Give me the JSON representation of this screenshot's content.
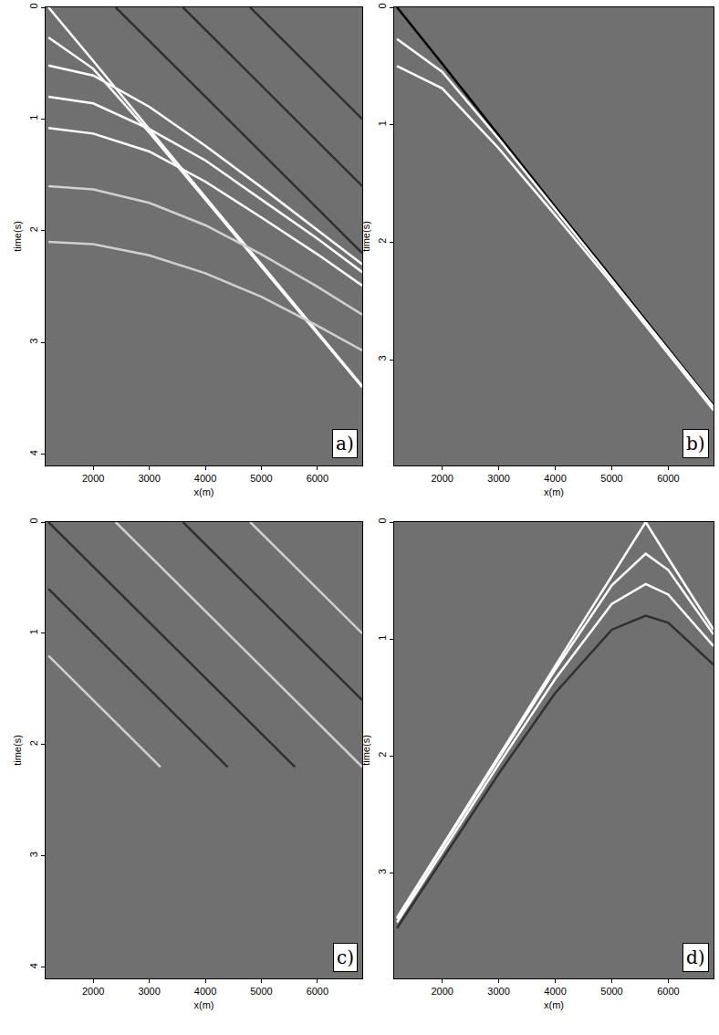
{
  "chart_data": [
    {
      "type": "line",
      "annotations": [
        "a)"
      ],
      "x_label": "x(m)",
      "y_label": "time(s)",
      "xlim": [
        1150,
        6800
      ],
      "xticks": [
        2000,
        3000,
        4000,
        5000,
        6000
      ],
      "ylim": [
        0,
        4.1
      ],
      "yticks": [
        0,
        1,
        2,
        3,
        4
      ],
      "tick_labels": true,
      "series": [
        {
          "color": "#ffffff",
          "x": [
            1200,
            2000,
            3000,
            4000,
            5000,
            6000,
            6800
          ],
          "values": [
            0,
            0.48,
            1.09,
            1.7,
            2.3,
            2.91,
            3.39
          ]
        },
        {
          "color": "#ffffff",
          "x": [
            1200,
            2000,
            3000,
            4000,
            5000,
            6000,
            6800
          ],
          "values": [
            0.27,
            0.55,
            1.12,
            1.72,
            2.32,
            2.92,
            3.4
          ]
        },
        {
          "color": "#ffffff",
          "x": [
            1200,
            2000,
            3000,
            4000,
            5000,
            6000,
            6800
          ],
          "values": [
            0.52,
            0.61,
            0.89,
            1.24,
            1.61,
            1.99,
            2.3
          ]
        },
        {
          "color": "#ffffff",
          "x": [
            1200,
            2000,
            3000,
            4000,
            5000,
            6000,
            6800
          ],
          "values": [
            0.8,
            0.86,
            1.09,
            1.37,
            1.72,
            2.07,
            2.37
          ]
        },
        {
          "color": "#ffffff",
          "x": [
            1200,
            2000,
            3000,
            4000,
            5000,
            6000,
            6800
          ],
          "values": [
            1.08,
            1.13,
            1.29,
            1.56,
            1.88,
            2.21,
            2.49
          ]
        },
        {
          "color": "#d0d0d0",
          "x": [
            1200,
            2000,
            3000,
            4000,
            5000,
            6000,
            6800
          ],
          "values": [
            1.6,
            1.63,
            1.75,
            1.95,
            2.21,
            2.5,
            2.75
          ]
        },
        {
          "color": "#d0d0d0",
          "x": [
            1200,
            2000,
            3000,
            4000,
            5000,
            6000,
            6800
          ],
          "values": [
            2.1,
            2.12,
            2.22,
            2.38,
            2.59,
            2.85,
            3.07
          ]
        },
        {
          "color": "#303030",
          "x": [
            2400,
            6800
          ],
          "values": [
            0,
            2.2
          ]
        },
        {
          "color": "#303030",
          "x": [
            3600,
            6800
          ],
          "values": [
            0,
            1.6
          ]
        },
        {
          "color": "#303030",
          "x": [
            4800,
            6800
          ],
          "values": [
            0,
            1.0
          ]
        }
      ]
    },
    {
      "type": "line",
      "annotations": [
        "b)"
      ],
      "x_label": "x(m)",
      "y_label": "time(s)",
      "xlim": [
        1150,
        6800
      ],
      "xticks": [
        2000,
        3000,
        4000,
        5000,
        6000
      ],
      "ylim": [
        0,
        3.9
      ],
      "yticks": [
        0,
        1,
        2,
        3
      ],
      "tick_labels": true,
      "series": [
        {
          "color": "#000000",
          "x": [
            1200,
            2000,
            3000,
            4000,
            5000,
            6000,
            6800
          ],
          "values": [
            0,
            0.48,
            1.09,
            1.7,
            2.3,
            2.91,
            3.39
          ]
        },
        {
          "color": "#ffffff",
          "x": [
            1200,
            2000,
            3000,
            4000,
            5000,
            6000,
            6800
          ],
          "values": [
            0.27,
            0.55,
            1.12,
            1.72,
            2.32,
            2.92,
            3.4
          ]
        },
        {
          "color": "#ffffff",
          "x": [
            1200,
            2000,
            3000,
            4000,
            5000,
            6000,
            6800
          ],
          "values": [
            0.5,
            0.69,
            1.2,
            1.77,
            2.35,
            2.95,
            3.43
          ]
        }
      ]
    },
    {
      "type": "line",
      "annotations": [
        "c)"
      ],
      "x_label": "x(m)",
      "y_label": "time(s)",
      "xlim": [
        1150,
        6800
      ],
      "xticks": [
        2000,
        3000,
        4000,
        5000,
        6000
      ],
      "ylim": [
        0,
        4.1
      ],
      "yticks": [
        0,
        1,
        2,
        3,
        4
      ],
      "tick_labels": true,
      "series": [
        {
          "color": "#303030",
          "x": [
            1200,
            5600
          ],
          "values": [
            0,
            2.2
          ]
        },
        {
          "color": "#d0d0d0",
          "x": [
            2400,
            6800
          ],
          "values": [
            0,
            2.2
          ]
        },
        {
          "color": "#303030",
          "x": [
            1200,
            4400
          ],
          "values": [
            0.6,
            2.2
          ]
        },
        {
          "color": "#d0d0d0",
          "x": [
            1200,
            3200
          ],
          "values": [
            1.2,
            2.2
          ]
        },
        {
          "color": "#303030",
          "x": [
            3600,
            6800
          ],
          "values": [
            0,
            1.6
          ]
        },
        {
          "color": "#d0d0d0",
          "x": [
            4800,
            6800
          ],
          "values": [
            0,
            1.0
          ]
        }
      ]
    },
    {
      "type": "line",
      "annotations": [
        "d)"
      ],
      "x_label": "x(m)",
      "y_label": "time(s)",
      "xlim": [
        1150,
        6800
      ],
      "xticks": [
        2000,
        3000,
        4000,
        5000,
        6000
      ],
      "ylim": [
        0,
        3.9
      ],
      "yticks": [
        0,
        1,
        2,
        3
      ],
      "tick_labels": true,
      "series": [
        {
          "color": "#ffffff",
          "x": [
            1200,
            2000,
            3000,
            4000,
            5000,
            5600,
            6000,
            6800
          ],
          "values": [
            3.38,
            2.77,
            2.0,
            1.23,
            0.46,
            0,
            0.31,
            0.92
          ]
        },
        {
          "color": "#ffffff",
          "x": [
            1200,
            2000,
            3000,
            4000,
            5000,
            5600,
            6000,
            6800
          ],
          "values": [
            3.39,
            2.78,
            2.02,
            1.26,
            0.54,
            0.27,
            0.41,
            0.96
          ]
        },
        {
          "color": "#ffffff",
          "x": [
            1200,
            2000,
            3000,
            4000,
            5000,
            5600,
            6000,
            6800
          ],
          "values": [
            3.42,
            2.82,
            2.07,
            1.34,
            0.7,
            0.53,
            0.62,
            1.06
          ]
        },
        {
          "color": "#303030",
          "x": [
            1200,
            2000,
            3000,
            4000,
            5000,
            5600,
            6000,
            6800
          ],
          "values": [
            3.47,
            2.88,
            2.15,
            1.46,
            0.92,
            0.8,
            0.86,
            1.22
          ]
        }
      ]
    }
  ]
}
